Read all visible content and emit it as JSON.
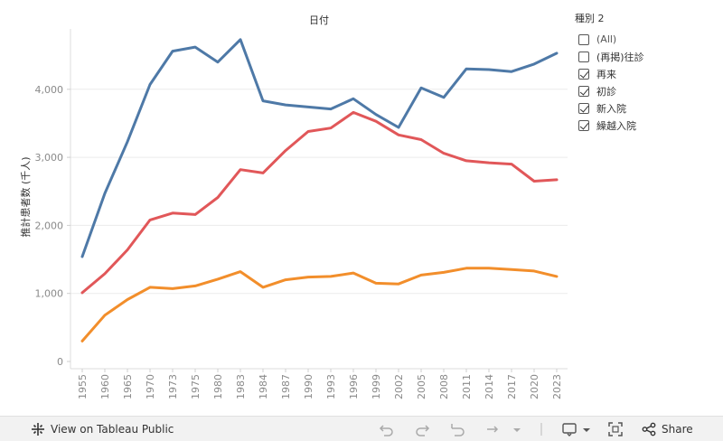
{
  "chart_data": {
    "type": "line",
    "title": "日付",
    "xlabel": "日付",
    "ylabel": "推計患者数 (千人)",
    "categories": [
      "1955",
      "1960",
      "1965",
      "1970",
      "1973",
      "1975",
      "1980",
      "1983",
      "1984",
      "1987",
      "1990",
      "1993",
      "1996",
      "1999",
      "2002",
      "2005",
      "2008",
      "2011",
      "2014",
      "2017",
      "2020",
      "2023"
    ],
    "ylim": [
      0,
      5000
    ],
    "yticks": [
      0,
      1000,
      2000,
      3000,
      4000
    ],
    "ytick_labels": [
      "0",
      "1,000",
      "2,000",
      "3,000",
      "4,000"
    ],
    "grid": true,
    "series": [
      {
        "name": "blue",
        "color": "#4e79a7",
        "values": [
          1540,
          2470,
          3230,
          4070,
          4560,
          4620,
          4400,
          4730,
          3830,
          3770,
          3740,
          3710,
          3860,
          3630,
          3440,
          4020,
          3880,
          4300,
          4290,
          4260,
          4370,
          4530
        ]
      },
      {
        "name": "red",
        "color": "#e15759",
        "values": [
          1010,
          1290,
          1640,
          2080,
          2180,
          2160,
          2410,
          2820,
          2770,
          3100,
          3380,
          3430,
          3660,
          3530,
          3330,
          3260,
          3060,
          2950,
          2920,
          2900,
          2650,
          2670
        ]
      },
      {
        "name": "orange",
        "color": "#f28e2b",
        "values": [
          300,
          680,
          910,
          1090,
          1070,
          1110,
          1210,
          1320,
          1090,
          1200,
          1240,
          1250,
          1300,
          1150,
          1140,
          1270,
          1310,
          1370,
          1370,
          1350,
          1330,
          1250
        ]
      }
    ]
  },
  "legend": {
    "title": "種別 2",
    "items": [
      {
        "label": "(All)",
        "checked": false
      },
      {
        "label": "(再掲)往診",
        "checked": false
      },
      {
        "label": "再来",
        "checked": true
      },
      {
        "label": "初診",
        "checked": true
      },
      {
        "label": "新入院",
        "checked": true
      },
      {
        "label": "繰越入院",
        "checked": true
      }
    ]
  },
  "toolbar": {
    "view_label": "View on Tableau Public",
    "share_label": "Share"
  }
}
